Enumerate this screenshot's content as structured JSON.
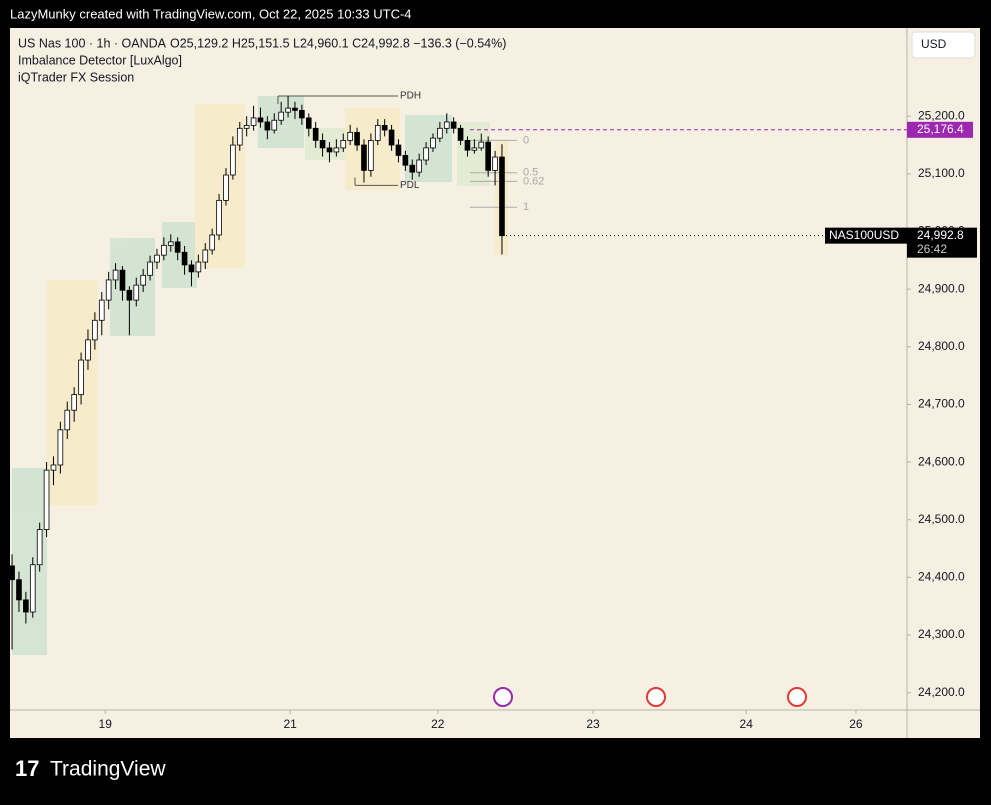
{
  "header": "LazyMunky created with TradingView.com, Oct 22, 2025 10:33 UTC-4",
  "footer_brand": "TradingView",
  "chart_data": {
    "type": "candlestick",
    "title": "US Nas 100 · 1h · OANDA",
    "subtitle": "O25,129.2  H25,151.5  L24,960.1  C24,992.8  −136.3 (−0.54%)",
    "indicators": [
      "Imbalance Detector [LuxAlgo]",
      "iQTrader FX Session"
    ],
    "currency": "USD",
    "symbol": "NAS100USD",
    "last_price_label": "24,992.8",
    "countdown": "26:42",
    "up_color": "#ffffff",
    "down_color": "#000000",
    "open": [
      24420,
      24396,
      24361,
      24340,
      24422,
      24483,
      24586,
      24595,
      24656,
      24690,
      24717,
      24777,
      24812,
      24846,
      24881,
      24916,
      24933,
      24898,
      24881,
      24907,
      24924,
      24947,
      24959,
      24976,
      24982,
      24964,
      24942,
      24930,
      24947,
      24968,
      24994,
      25054,
      25098,
      25150,
      25179,
      25184,
      25197,
      25190,
      25176,
      25193,
      25207,
      25214,
      25210,
      25197,
      25179,
      25158,
      25145,
      25138,
      25145,
      25158,
      25172,
      25150,
      25106,
      25158,
      25184,
      25176,
      25150,
      25132,
      25115,
      25103,
      25124,
      25145,
      25162,
      25179,
      25190,
      25179,
      25158,
      25141,
      25145,
      25155,
      25106,
      25129.2
    ],
    "high": [
      24440,
      24410,
      24375,
      24435,
      24495,
      24600,
      24610,
      24670,
      24705,
      24730,
      24790,
      24830,
      24860,
      24895,
      24930,
      24945,
      24940,
      24905,
      24920,
      24935,
      24958,
      24970,
      24990,
      24995,
      24990,
      24975,
      24950,
      24960,
      24980,
      25005,
      25065,
      25110,
      25165,
      25190,
      25200,
      25218,
      25215,
      25200,
      25205,
      25225,
      25235,
      25225,
      25220,
      25205,
      25190,
      25170,
      25155,
      25160,
      25170,
      25185,
      25180,
      25160,
      25170,
      25195,
      25195,
      25185,
      25160,
      25140,
      25125,
      25135,
      25155,
      25170,
      25190,
      25205,
      25198,
      25185,
      25165,
      25160,
      25170,
      25165,
      25140,
      25151.5
    ],
    "low": [
      24275,
      24340,
      24320,
      24330,
      24410,
      24470,
      24560,
      24580,
      24640,
      24670,
      24700,
      24760,
      24795,
      24820,
      24865,
      24900,
      24880,
      24820,
      24870,
      24895,
      24915,
      24935,
      24950,
      24965,
      24950,
      24925,
      24905,
      24920,
      24935,
      24960,
      24985,
      25045,
      25090,
      25140,
      25165,
      25175,
      25180,
      25160,
      25170,
      25185,
      25198,
      25195,
      25185,
      25165,
      25145,
      25130,
      25120,
      25130,
      25138,
      25150,
      25140,
      25085,
      25095,
      25150,
      25165,
      25140,
      25120,
      25105,
      25090,
      25095,
      25115,
      25138,
      25155,
      25170,
      25170,
      25150,
      25130,
      25135,
      25140,
      25095,
      25080,
      24960.1
    ],
    "close": [
      24396,
      24361,
      24340,
      24422,
      24483,
      24586,
      24595,
      24656,
      24690,
      24717,
      24777,
      24812,
      24846,
      24881,
      24916,
      24933,
      24898,
      24881,
      24907,
      24924,
      24947,
      24959,
      24976,
      24982,
      24964,
      24942,
      24930,
      24947,
      24968,
      24994,
      25054,
      25098,
      25150,
      25179,
      25184,
      25197,
      25190,
      25176,
      25193,
      25207,
      25214,
      25210,
      25197,
      25179,
      25158,
      25145,
      25138,
      25145,
      25158,
      25172,
      25150,
      25106,
      25158,
      25184,
      25176,
      25150,
      25132,
      25115,
      25103,
      25124,
      25145,
      25162,
      25179,
      25190,
      25179,
      25158,
      25141,
      25145,
      25155,
      25106,
      25129.2,
      24992.8
    ],
    "ylim": [
      24170,
      25353
    ],
    "yticks": [
      {
        "value": 24200,
        "label": "24,200.0"
      },
      {
        "value": 24300,
        "label": "24,300.0"
      },
      {
        "value": 24400,
        "label": "24,400.0"
      },
      {
        "value": 24500,
        "label": "24,500.0"
      },
      {
        "value": 24600,
        "label": "24,600.0"
      },
      {
        "value": 24700,
        "label": "24,700.0"
      },
      {
        "value": 24800,
        "label": "24,800.0"
      },
      {
        "value": 24900,
        "label": "24,900.0"
      },
      {
        "value": 25000,
        "label": "25,000.0"
      },
      {
        "value": 25100,
        "label": "25,100.0"
      },
      {
        "value": 25200,
        "label": "25,200.0"
      }
    ],
    "xlim": [
      -0.3,
      129.7
    ],
    "xticks": [
      {
        "value": 13.5,
        "label": "19"
      },
      {
        "value": 40.3,
        "label": "21"
      },
      {
        "value": 61.7,
        "label": "22"
      },
      {
        "value": 84.2,
        "label": "23"
      },
      {
        "value": 106.4,
        "label": "24"
      },
      {
        "value": 122.3,
        "label": "26"
      }
    ],
    "price_line": {
      "value": 25176.4,
      "label": "25,176.4",
      "color": "#9c27b0"
    },
    "levels": [
      {
        "label": "PDH",
        "value": 25235
      },
      {
        "label": "PDL",
        "value": 25080
      }
    ],
    "fib": [
      {
        "label": "0",
        "value": 25158
      },
      {
        "label": "0.5",
        "value": 25102
      },
      {
        "label": "0.62",
        "value": 25087
      },
      {
        "label": "1",
        "value": 25042
      }
    ]
  }
}
